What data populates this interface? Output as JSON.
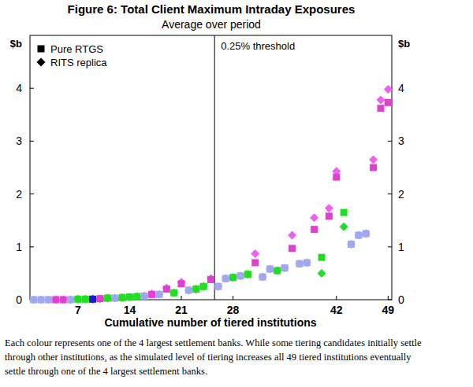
{
  "chart_data": {
    "type": "scatter",
    "title": "Figure 6: Total Client Maximum Intraday Exposures",
    "subtitle": "Average over period",
    "x_label": "Cumulative number of tiered institutions",
    "y_label": "$b",
    "xlim": [
      0.5,
      49.5
    ],
    "xticks": [
      7,
      14,
      21,
      28,
      42,
      49
    ],
    "ylim": [
      0,
      5
    ],
    "yticks": [
      0,
      1,
      2,
      3,
      4
    ],
    "grid": false,
    "legend": "top-left",
    "annotations": [
      {
        "x": 25.5,
        "text": "0.25% threshold"
      }
    ],
    "series": [
      {
        "name": "Pure RTGS",
        "color": "#000000",
        "marker": "square",
        "x": [
          1,
          2,
          3,
          4,
          5,
          6,
          7,
          8,
          9,
          10,
          11,
          12,
          13,
          14,
          15,
          16,
          17,
          18,
          19,
          20,
          21,
          22,
          23,
          24,
          25,
          26,
          27,
          28,
          29,
          30,
          31,
          32,
          33,
          34,
          35,
          36,
          37,
          38,
          39,
          40,
          41,
          42,
          43,
          44,
          45,
          46,
          47,
          48,
          49
        ],
        "values": [
          0,
          0,
          0,
          0,
          0,
          0,
          0.01,
          0.01,
          0.01,
          0.02,
          0.03,
          0.03,
          0.04,
          0.05,
          0.06,
          0.07,
          0.1,
          0.1,
          0.2,
          0.13,
          0.3,
          0.18,
          0.2,
          0.25,
          0.38,
          0.25,
          0.4,
          0.42,
          0.45,
          0.48,
          0.7,
          0.43,
          0.58,
          0.55,
          0.6,
          0.97,
          0.68,
          0.7,
          1.33,
          0.8,
          1.58,
          2.32,
          1.65,
          1.05,
          1.22,
          1.25,
          2.5,
          3.62,
          3.73
        ],
        "colors": [
          "#a0a8f0",
          "#a0a8f0",
          "#a0a8f0",
          "#e040d0",
          "#e040d0",
          "#a0a8f0",
          "#22dd22",
          "#22dd22",
          "#1a1acc",
          "#e040d0",
          "#22dd22",
          "#a0a8f0",
          "#22dd22",
          "#22dd22",
          "#22dd22",
          "#a0a8f0",
          "#e040d0",
          "#a0a8f0",
          "#e040d0",
          "#22dd22",
          "#e040d0",
          "#a0a8f0",
          "#22dd22",
          "#22dd22",
          "#e040d0",
          "#a0a8f0",
          "#a0a8f0",
          "#22dd22",
          "#a0a8f0",
          "#22dd22",
          "#e040d0",
          "#a0a8f0",
          "#a0a8f0",
          "#22dd22",
          "#a0a8f0",
          "#e040d0",
          "#a0a8f0",
          "#a0a8f0",
          "#e040d0",
          "#22dd22",
          "#e040d0",
          "#e040d0",
          "#22dd22",
          "#a0a8f0",
          "#a0a8f0",
          "#a0a8f0",
          "#e040d0",
          "#e040d0",
          "#e040d0"
        ]
      },
      {
        "name": "RITS replica",
        "color": "#000000",
        "marker": "diamond",
        "x": [
          1,
          2,
          3,
          4,
          5,
          6,
          7,
          8,
          9,
          10,
          11,
          12,
          13,
          14,
          15,
          16,
          17,
          18,
          19,
          20,
          21,
          22,
          23,
          24,
          25,
          26,
          27,
          28,
          29,
          30,
          31,
          32,
          33,
          34,
          35,
          36,
          37,
          38,
          39,
          40,
          41,
          42,
          43,
          44,
          45,
          46,
          47,
          48,
          49
        ],
        "values": [
          0,
          0,
          0,
          0,
          0,
          0,
          0.01,
          0.01,
          0.01,
          0.02,
          0.03,
          0.03,
          0.04,
          0.05,
          0.06,
          0.07,
          0.11,
          0.1,
          0.22,
          0.13,
          0.33,
          0.18,
          0.2,
          0.25,
          0.4,
          0.25,
          0.4,
          0.42,
          0.45,
          0.48,
          0.87,
          0.43,
          0.58,
          0.55,
          0.6,
          1.22,
          0.68,
          0.7,
          1.55,
          0.5,
          1.73,
          2.43,
          1.38,
          1.05,
          1.22,
          1.25,
          2.65,
          3.78,
          3.98
        ],
        "colors": [
          "#a0a8f0",
          "#a0a8f0",
          "#a0a8f0",
          "#f060f0",
          "#f060f0",
          "#a0a8f0",
          "#22dd22",
          "#22dd22",
          "#1a1acc",
          "#f060f0",
          "#22dd22",
          "#a0a8f0",
          "#22dd22",
          "#22dd22",
          "#22dd22",
          "#a0a8f0",
          "#f060f0",
          "#a0a8f0",
          "#f060f0",
          "#22dd22",
          "#f060f0",
          "#a0a8f0",
          "#22dd22",
          "#22dd22",
          "#f060f0",
          "#a0a8f0",
          "#a0a8f0",
          "#22dd22",
          "#a0a8f0",
          "#22dd22",
          "#f060f0",
          "#a0a8f0",
          "#a0a8f0",
          "#22dd22",
          "#a0a8f0",
          "#f060f0",
          "#a0a8f0",
          "#a0a8f0",
          "#f060f0",
          "#22dd22",
          "#f060f0",
          "#f060f0",
          "#22dd22",
          "#a0a8f0",
          "#a0a8f0",
          "#a0a8f0",
          "#f060f0",
          "#f060f0",
          "#f060f0"
        ]
      }
    ],
    "footnote": [
      "Each colour represents one of the 4 largest settlement banks. While some tiering candidates initially settle",
      "through other institutions, as the simulated level of tiering increases all 49 tiered institutions eventually",
      "settle through one of the 4 largest settlement banks."
    ]
  }
}
